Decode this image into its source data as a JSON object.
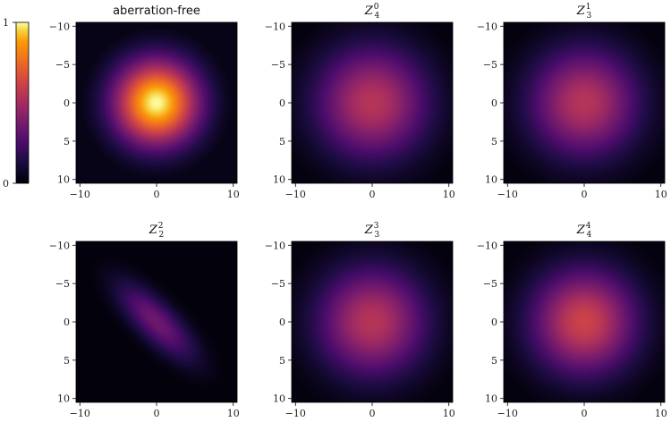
{
  "chart_data": {
    "type": "heatmap",
    "colormap": "inferno",
    "colorbar": {
      "ticks": [
        "0",
        "1"
      ],
      "vmin": 0,
      "vmax": 1
    },
    "x_ticks": [
      "−10",
      "0",
      "10"
    ],
    "y_ticks": [
      "−10",
      "−5",
      "0",
      "5",
      "10"
    ],
    "xlim": [
      -10.5,
      10.5
    ],
    "ylim": [
      10.5,
      -10.5
    ],
    "y_inverted": true,
    "panels": [
      {
        "title": "aberration-free",
        "title_style": "plain",
        "peak": 1.0,
        "spread": 5.2
      },
      {
        "title_letter": "Z",
        "title_sub": "4",
        "title_sup": "0",
        "title_style": "math",
        "peak": 0.55,
        "spread": 6.8
      },
      {
        "title_letter": "Z",
        "title_sub": "3",
        "title_sup": "1",
        "title_style": "math",
        "peak": 0.55,
        "spread": 6.6
      },
      {
        "title_letter": "Z",
        "title_sub": "2",
        "title_sup": "2",
        "title_style": "math",
        "peak": 0.35,
        "spread": 5.0,
        "elliptical": true
      },
      {
        "title_letter": "Z",
        "title_sub": "3",
        "title_sup": "3",
        "title_style": "math",
        "peak": 0.55,
        "spread": 6.6
      },
      {
        "title_letter": "Z",
        "title_sub": "4",
        "title_sup": "4",
        "title_style": "math",
        "peak": 0.62,
        "spread": 6.4
      }
    ]
  }
}
